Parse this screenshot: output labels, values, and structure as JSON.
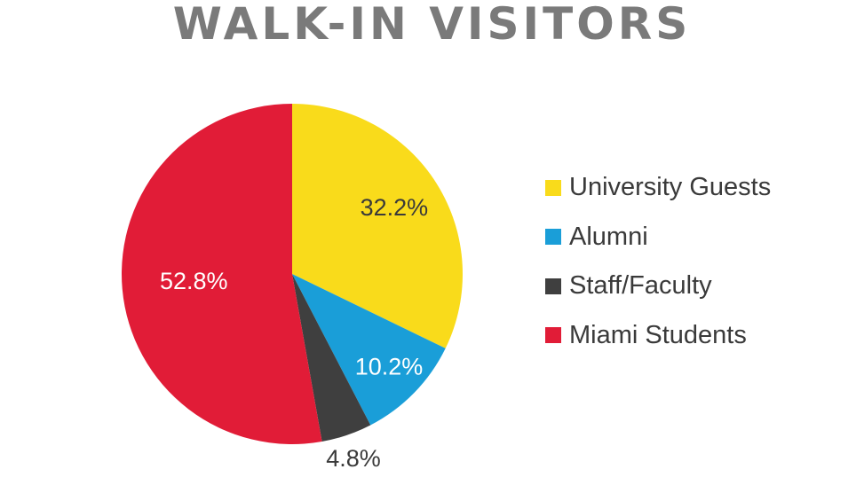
{
  "chart_data": {
    "type": "pie",
    "title": "WALK-IN VISITORS",
    "categories": [
      "University Guests",
      "Alumni",
      "Staff/Faculty",
      "Miami Students"
    ],
    "values": [
      32.2,
      10.2,
      4.8,
      52.8
    ],
    "value_labels": [
      "32.2%",
      "10.2%",
      "4.8%",
      "52.8%"
    ],
    "colors": [
      "#F9DB1B",
      "#1A9ED8",
      "#3F3F3F",
      "#E11C37"
    ],
    "label_colors": [
      "#3a3a3a",
      "#ffffff",
      "#3a3a3a",
      "#ffffff"
    ],
    "start_angle": "12 o'clock",
    "direction": "clockwise",
    "legend_position": "right"
  }
}
